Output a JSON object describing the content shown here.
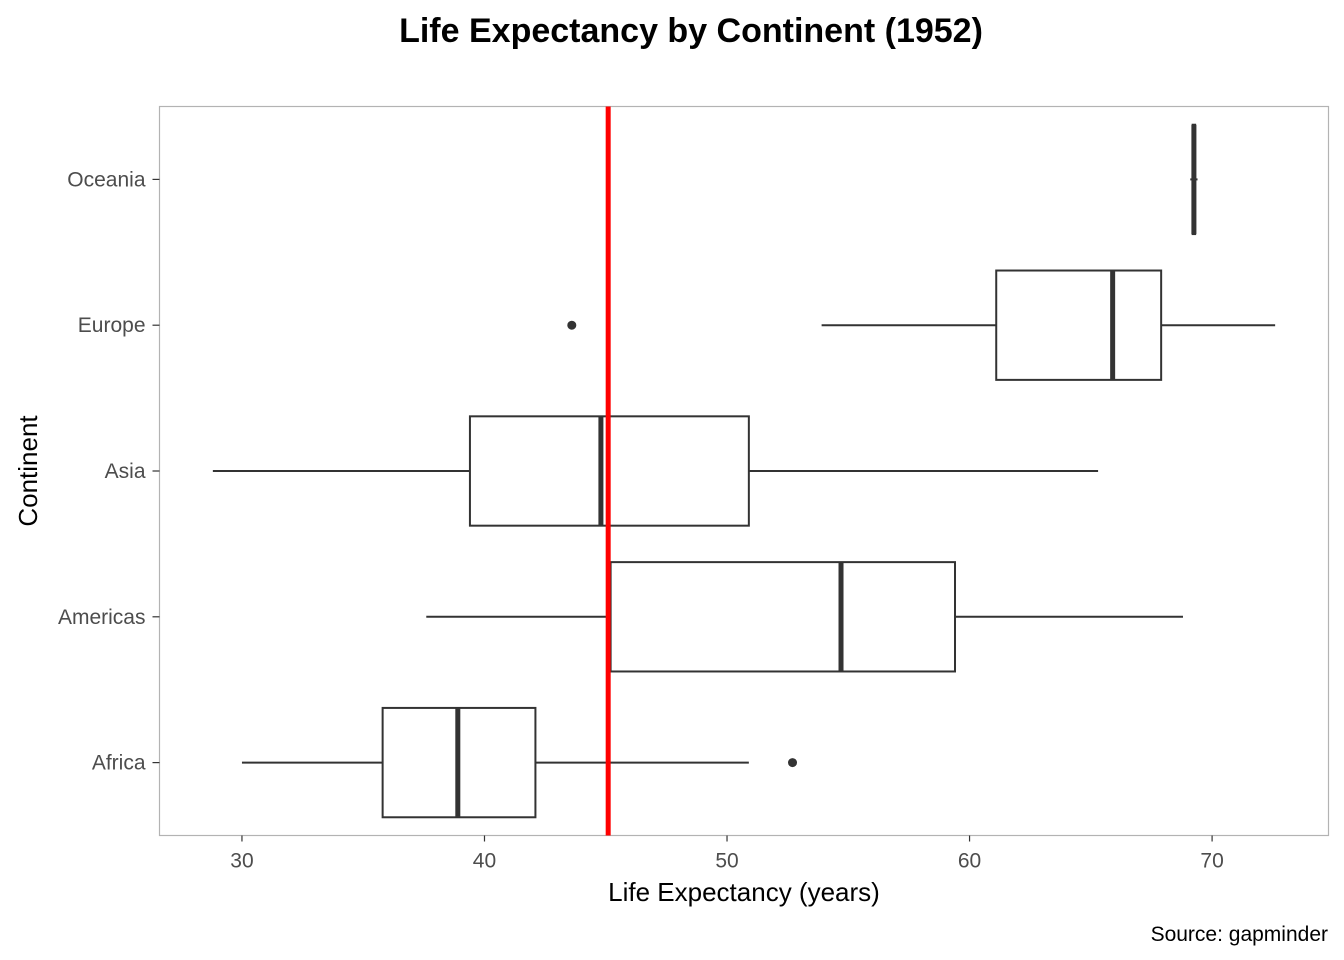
{
  "chart_data": {
    "type": "boxplot",
    "orientation": "horizontal",
    "title": "Life Expectancy by Continent (1952)",
    "xlabel": "Life Expectancy (years)",
    "ylabel": "Continent",
    "caption": "Source: gapminder",
    "xlim": [
      26.6,
      74.8
    ],
    "xticks": [
      30,
      40,
      50,
      60,
      70
    ],
    "categories": [
      "Africa",
      "Americas",
      "Asia",
      "Europe",
      "Oceania"
    ],
    "boxes": [
      {
        "category": "Africa",
        "whisker_low": 30.0,
        "q1": 35.8,
        "median": 38.9,
        "q3": 42.1,
        "whisker_high": 50.9,
        "outliers": [
          52.7
        ]
      },
      {
        "category": "Americas",
        "whisker_low": 37.6,
        "q1": 45.2,
        "median": 54.7,
        "q3": 59.4,
        "whisker_high": 68.8,
        "outliers": []
      },
      {
        "category": "Asia",
        "whisker_low": 28.8,
        "q1": 39.4,
        "median": 44.8,
        "q3": 50.9,
        "whisker_high": 65.3,
        "outliers": []
      },
      {
        "category": "Europe",
        "whisker_low": 53.9,
        "q1": 61.1,
        "median": 65.9,
        "q3": 67.9,
        "whisker_high": 72.6,
        "outliers": [
          43.6
        ]
      },
      {
        "category": "Oceania",
        "whisker_low": 69.1,
        "q1": 69.2,
        "median": 69.25,
        "q3": 69.3,
        "whisker_high": 69.4,
        "outliers": []
      }
    ],
    "reference_line": {
      "x": 45.1,
      "color": "#ff0000"
    },
    "box_color": "#333333",
    "grid": false
  }
}
